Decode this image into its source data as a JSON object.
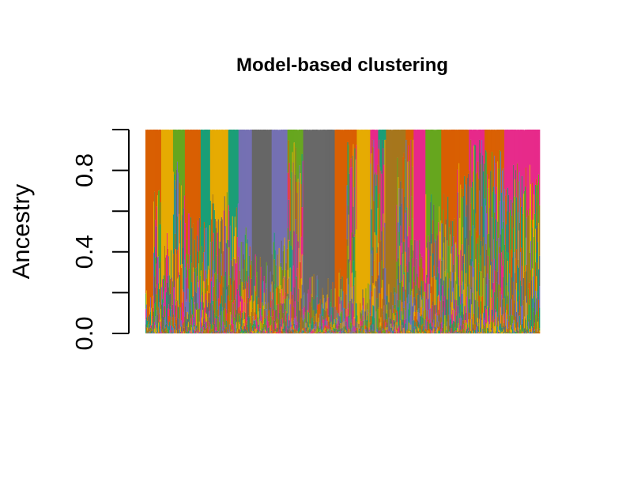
{
  "chart_data": {
    "type": "bar",
    "subtype": "stacked-proportion",
    "title": "Model-based clustering",
    "xlabel": "",
    "ylabel": "Ancestry",
    "ylim": [
      0,
      1
    ],
    "yticks": [
      0.0,
      0.2,
      0.4,
      0.6,
      0.8,
      1.0
    ],
    "ytick_labels": [
      "0.0",
      "",
      "0.4",
      "",
      "0.8",
      ""
    ],
    "n_individuals": 500,
    "grid": false,
    "legend": "none",
    "cluster_colors": [
      "#D95F02",
      "#E6AB02",
      "#1B9E77",
      "#66A61E",
      "#7570B3",
      "#666666",
      "#A6761D",
      "#E7298A"
    ],
    "segments": [
      {
        "start": 0,
        "end": 10,
        "cluster": 0,
        "mix": 0.15
      },
      {
        "start": 10,
        "end": 20,
        "cluster": 0,
        "mix": 0.65
      },
      {
        "start": 20,
        "end": 35,
        "cluster": 1,
        "mix": 0.35
      },
      {
        "start": 35,
        "end": 50,
        "cluster": 3,
        "mix": 0.7
      },
      {
        "start": 50,
        "end": 70,
        "cluster": 0,
        "mix": 0.45
      },
      {
        "start": 70,
        "end": 82,
        "cluster": 2,
        "mix": 0.4
      },
      {
        "start": 82,
        "end": 105,
        "cluster": 1,
        "mix": 0.55
      },
      {
        "start": 105,
        "end": 118,
        "cluster": 2,
        "mix": 0.5
      },
      {
        "start": 118,
        "end": 135,
        "cluster": 4,
        "mix": 0.4
      },
      {
        "start": 135,
        "end": 160,
        "cluster": 5,
        "mix": 0.25
      },
      {
        "start": 160,
        "end": 180,
        "cluster": 4,
        "mix": 0.35
      },
      {
        "start": 180,
        "end": 200,
        "cluster": 3,
        "mix": 0.8
      },
      {
        "start": 200,
        "end": 240,
        "cluster": 5,
        "mix": 0.15
      },
      {
        "start": 240,
        "end": 255,
        "cluster": 0,
        "mix": 0.2
      },
      {
        "start": 255,
        "end": 268,
        "cluster": 0,
        "mix": 0.85
      },
      {
        "start": 268,
        "end": 285,
        "cluster": 1,
        "mix": 0.1
      },
      {
        "start": 285,
        "end": 295,
        "cluster": 7,
        "mix": 0.85
      },
      {
        "start": 295,
        "end": 305,
        "cluster": 2,
        "mix": 0.9
      },
      {
        "start": 305,
        "end": 318,
        "cluster": 6,
        "mix": 0.1
      },
      {
        "start": 318,
        "end": 330,
        "cluster": 6,
        "mix": 0.75
      },
      {
        "start": 330,
        "end": 340,
        "cluster": 0,
        "mix": 0.9
      },
      {
        "start": 340,
        "end": 355,
        "cluster": 7,
        "mix": 0.35
      },
      {
        "start": 355,
        "end": 375,
        "cluster": 3,
        "mix": 0.55
      },
      {
        "start": 375,
        "end": 395,
        "cluster": 0,
        "mix": 0.55
      },
      {
        "start": 395,
        "end": 410,
        "cluster": 0,
        "mix": 0.7
      },
      {
        "start": 410,
        "end": 430,
        "cluster": 7,
        "mix": 0.85
      },
      {
        "start": 430,
        "end": 455,
        "cluster": 0,
        "mix": 0.75
      },
      {
        "start": 455,
        "end": 500,
        "cluster": 7,
        "mix": 0.7
      }
    ]
  }
}
